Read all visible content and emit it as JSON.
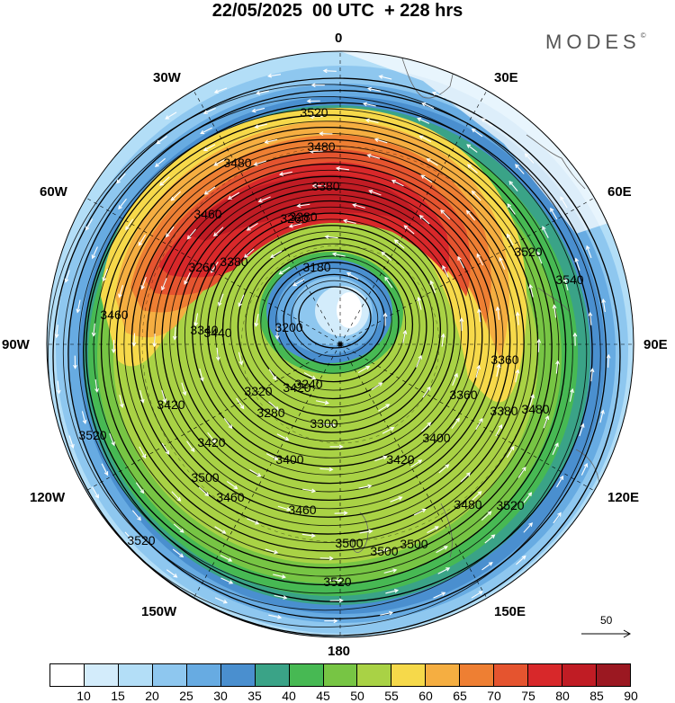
{
  "title": "22/05/2025  00 UTC  + 228 hrs",
  "brand": {
    "name": "MODES",
    "mark": "©"
  },
  "longitude_labels": [
    "0",
    "30E",
    "60E",
    "90E",
    "120E",
    "150E",
    "180",
    "150W",
    "120W",
    "90W",
    "60W",
    "30W"
  ],
  "contours": {
    "variable": "geopotential height",
    "levels": [
      3180,
      3200,
      3240,
      3260,
      3280,
      3300,
      3320,
      3340,
      3360,
      3380,
      3400,
      3420,
      3440,
      3460,
      3480,
      3500,
      3520,
      3540
    ],
    "labels": [
      "3520",
      "3480",
      "3480",
      "3460",
      "3380",
      "3380",
      "3260",
      "3260",
      "3280",
      "3180",
      "3200",
      "3240",
      "3280",
      "3300",
      "3320",
      "3340",
      "3360",
      "3360",
      "3400",
      "3420",
      "3420",
      "3400",
      "3420",
      "3440",
      "3460",
      "3500",
      "3520",
      "3500",
      "3480",
      "3460",
      "3540",
      "3520",
      "3520",
      "3500",
      "3520",
      "3500",
      "3520",
      "3480",
      "3420",
      "3380",
      "3460"
    ]
  },
  "wind_reference": {
    "value": "50",
    "icon": "arrow-right-icon"
  },
  "colorbar": {
    "colors": [
      "#ffffff",
      "#d3ecfb",
      "#b3def7",
      "#8ec7ef",
      "#67abe2",
      "#4a8fcf",
      "#3aa387",
      "#47b953",
      "#77c544",
      "#a9d245",
      "#f6d94a",
      "#f5ae41",
      "#ee7f33",
      "#e5542f",
      "#d8282a",
      "#c01c24",
      "#9b1821"
    ],
    "labels": [
      "10",
      "15",
      "20",
      "25",
      "30",
      "35",
      "40",
      "45",
      "50",
      "55",
      "60",
      "65",
      "70",
      "75",
      "80",
      "85",
      "90"
    ]
  }
}
